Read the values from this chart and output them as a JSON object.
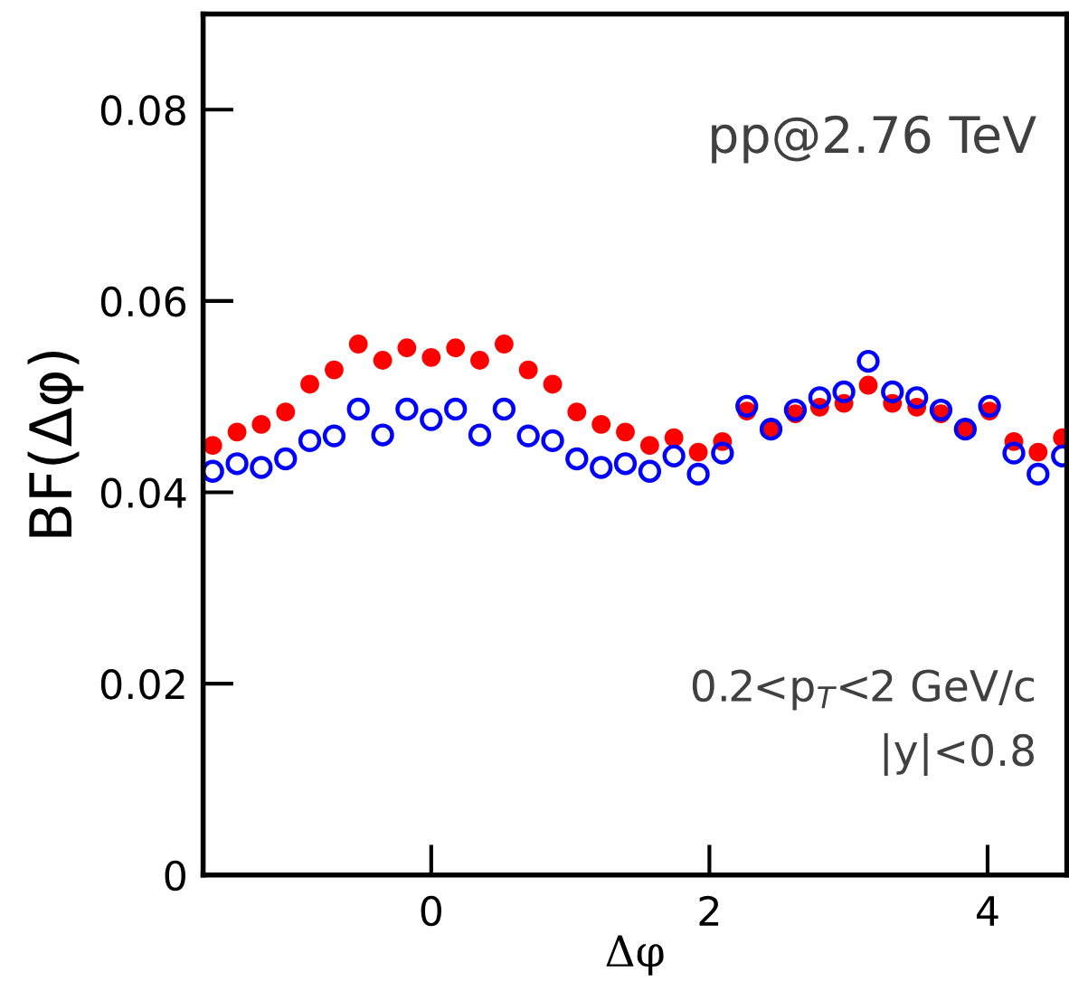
{
  "chart_data": {
    "type": "scatter",
    "xlabel": "Δφ",
    "ylabel": "BF(Δφ)",
    "x": [
      -1.571,
      -1.396,
      -1.222,
      -1.047,
      -0.873,
      -0.698,
      -0.524,
      -0.349,
      -0.175,
      0.0,
      0.175,
      0.349,
      0.524,
      0.698,
      0.873,
      1.047,
      1.222,
      1.396,
      1.571,
      1.745,
      1.92,
      2.094,
      2.269,
      2.443,
      2.618,
      2.793,
      2.967,
      3.142,
      3.316,
      3.491,
      3.665,
      3.84,
      4.014,
      4.189,
      4.363,
      4.538
    ],
    "series": [
      {
        "color": "#ff0000",
        "marker": "circle",
        "values": [
          0.0449,
          0.0463,
          0.0471,
          0.0484,
          0.0513,
          0.0528,
          0.0555,
          0.0538,
          0.0551,
          0.0541,
          0.0551,
          0.0538,
          0.0555,
          0.0528,
          0.0513,
          0.0484,
          0.0471,
          0.0463,
          0.0449,
          0.0457,
          0.0442,
          0.0453,
          0.0485,
          0.0467,
          0.0482,
          0.0489,
          0.0493,
          0.0512,
          0.0493,
          0.0489,
          0.0482,
          0.0467,
          0.0485,
          0.0453,
          0.0442,
          0.0457
        ]
      },
      {
        "color": "#0000ff",
        "marker": "open circle",
        "values": [
          0.0422,
          0.043,
          0.0426,
          0.0435,
          0.0454,
          0.0459,
          0.0487,
          0.046,
          0.0487,
          0.0476,
          0.0487,
          0.046,
          0.0487,
          0.0459,
          0.0454,
          0.0435,
          0.0426,
          0.043,
          0.0422,
          0.0438,
          0.0419,
          0.0441,
          0.049,
          0.0466,
          0.0486,
          0.0499,
          0.0505,
          0.0537,
          0.0505,
          0.0499,
          0.0486,
          0.0466,
          0.049,
          0.0441,
          0.0419,
          0.0438
        ]
      }
    ],
    "xlim": [
      -1.64,
      4.57
    ],
    "xticks": [
      0,
      2,
      4
    ],
    "ylim": [
      0,
      0.09
    ],
    "yticks": [
      0,
      0.02,
      0.04,
      0.06,
      0.08
    ],
    "grid": false,
    "legend": false,
    "annotations": [
      "pp@2.76 TeV",
      "0.2<p$_{T}$<2 GeV/c",
      "|y|<0.8"
    ]
  }
}
